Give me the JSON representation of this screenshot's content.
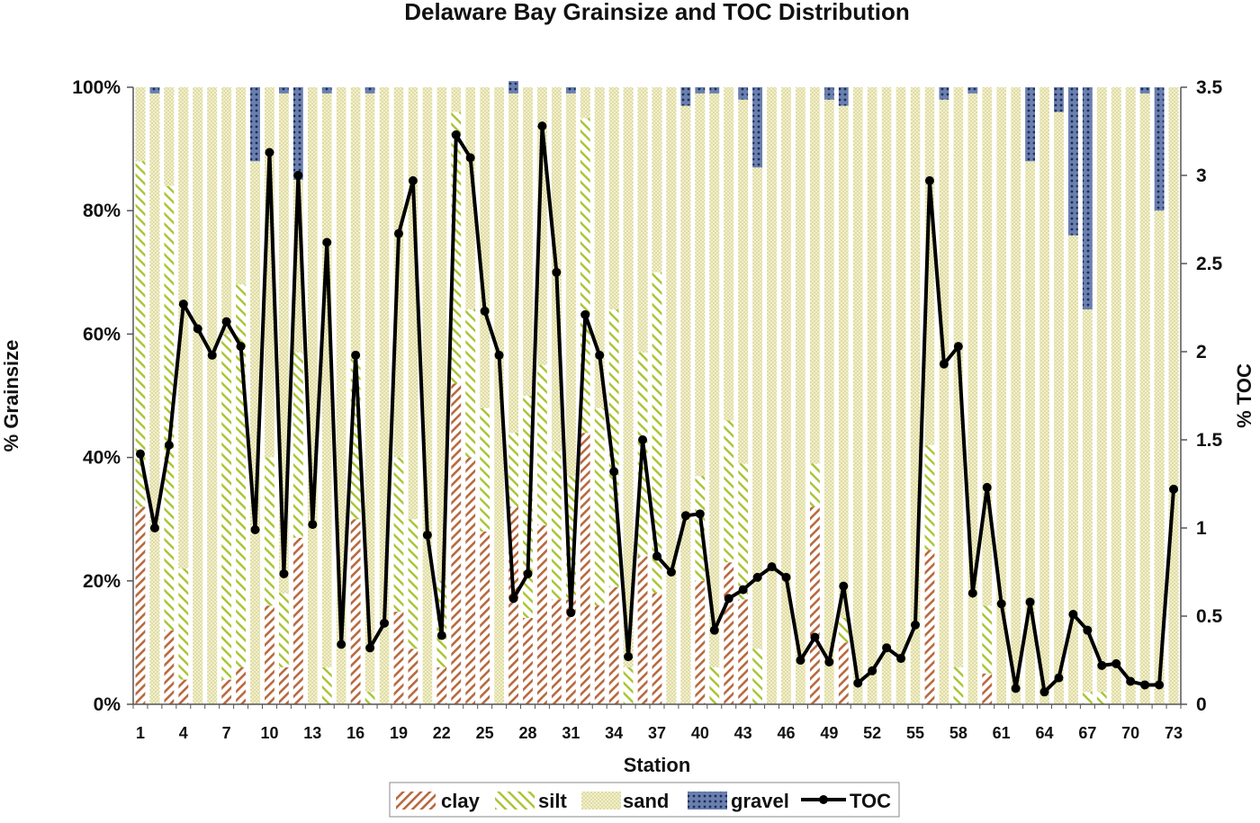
{
  "chart_data": {
    "type": "bar",
    "stacked": true,
    "title": "Delaware Bay Grainsize and TOC Distribution",
    "xlabel": "Station",
    "ylabel": "% Grainsize",
    "y2label": "% TOC",
    "ylim": [
      0,
      100
    ],
    "y2lim": [
      0,
      3.5
    ],
    "yticks": [
      "0%",
      "20%",
      "40%",
      "60%",
      "80%",
      "100%"
    ],
    "y2ticks": [
      "0",
      "0.5",
      "1",
      "1.5",
      "2",
      "2.5",
      "3",
      "3.5"
    ],
    "xticks": [
      "1",
      "4",
      "7",
      "10",
      "13",
      "16",
      "19",
      "22",
      "25",
      "28",
      "31",
      "34",
      "37",
      "40",
      "43",
      "46",
      "49",
      "52",
      "55",
      "58",
      "61",
      "64",
      "67",
      "70",
      "73"
    ],
    "legend_position": "bottom",
    "grid": false,
    "colors": {
      "clay": "#b8693f",
      "silt": "#a8c430",
      "sand": "#e8e8a8",
      "gravel": "#5a6e9c",
      "toc": "#000000"
    },
    "stations": [
      1,
      2,
      3,
      4,
      5,
      6,
      7,
      8,
      9,
      10,
      11,
      12,
      13,
      14,
      15,
      16,
      17,
      18,
      19,
      20,
      21,
      22,
      23,
      24,
      25,
      26,
      27,
      28,
      29,
      30,
      31,
      32,
      33,
      34,
      35,
      36,
      37,
      38,
      39,
      40,
      41,
      42,
      43,
      44,
      45,
      46,
      47,
      48,
      49,
      50,
      51,
      52,
      53,
      54,
      55,
      56,
      57,
      58,
      59,
      60,
      61,
      62,
      63,
      64,
      65,
      66,
      67,
      68,
      69,
      70,
      71,
      72,
      73
    ],
    "series": [
      {
        "name": "clay",
        "values": [
          32,
          0,
          12,
          4,
          0,
          0,
          4,
          6,
          0,
          16,
          6,
          27,
          0,
          0,
          0,
          30,
          0,
          0,
          15,
          9,
          0,
          6,
          52,
          40,
          28,
          0,
          32,
          14,
          29,
          17,
          17,
          44,
          16,
          19,
          0,
          24,
          18,
          0,
          0,
          20,
          0,
          23,
          17,
          0,
          0,
          0,
          0,
          32,
          0,
          10,
          0,
          0,
          0,
          0,
          0,
          25,
          0,
          0,
          0,
          5,
          0,
          0,
          0,
          0,
          0,
          0,
          0,
          0,
          0,
          0,
          0,
          0,
          0
        ]
      },
      {
        "name": "silt",
        "values": [
          56,
          0,
          72,
          18,
          0,
          0,
          56,
          62,
          0,
          24,
          12,
          30,
          0,
          6,
          0,
          26,
          2,
          0,
          25,
          21,
          0,
          14,
          44,
          24,
          20,
          0,
          12,
          36,
          26,
          24,
          20,
          51,
          32,
          45,
          6,
          33,
          52,
          0,
          0,
          17,
          6,
          23,
          22,
          9,
          0,
          0,
          0,
          7,
          0,
          4,
          0,
          0,
          0,
          0,
          0,
          17,
          0,
          6,
          0,
          11,
          0,
          0,
          0,
          0,
          0,
          0,
          2,
          2,
          0,
          0,
          0,
          0,
          0
        ]
      },
      {
        "name": "sand",
        "values": [
          12,
          99,
          16,
          78,
          100,
          100,
          40,
          32,
          88,
          60,
          81,
          28,
          100,
          93,
          100,
          44,
          97,
          100,
          60,
          70,
          100,
          80,
          4,
          36,
          52,
          100,
          55,
          50,
          45,
          59,
          62,
          5,
          52,
          36,
          94,
          43,
          30,
          100,
          97,
          62,
          93,
          54,
          59,
          78,
          100,
          100,
          100,
          61,
          98,
          83,
          100,
          100,
          100,
          100,
          100,
          58,
          98,
          94,
          99,
          84,
          100,
          100,
          88,
          100,
          96,
          76,
          62,
          98,
          100,
          100,
          99,
          80,
          100
        ]
      },
      {
        "name": "gravel",
        "values": [
          0,
          1,
          0,
          0,
          0,
          0,
          0,
          0,
          12,
          0,
          1,
          15,
          0,
          1,
          0,
          0,
          1,
          0,
          0,
          0,
          0,
          0,
          0,
          0,
          0,
          0,
          2,
          0,
          0,
          0,
          1,
          0,
          0,
          0,
          0,
          0,
          0,
          0,
          3,
          1,
          1,
          0,
          2,
          13,
          0,
          0,
          0,
          0,
          2,
          3,
          0,
          0,
          0,
          0,
          0,
          0,
          2,
          0,
          1,
          0,
          0,
          0,
          12,
          0,
          4,
          24,
          36,
          0,
          0,
          0,
          1,
          20,
          0
        ]
      },
      {
        "name": "TOC",
        "values": [
          1.42,
          1.0,
          1.47,
          2.27,
          2.13,
          1.98,
          2.17,
          2.03,
          0.99,
          3.13,
          0.74,
          3.0,
          1.02,
          2.62,
          0.34,
          1.98,
          0.32,
          0.46,
          2.67,
          2.97,
          0.96,
          0.39,
          3.23,
          3.1,
          2.23,
          1.98,
          0.6,
          0.74,
          3.28,
          2.45,
          0.52,
          2.21,
          1.98,
          1.32,
          0.27,
          1.5,
          0.84,
          0.75,
          1.07,
          1.08,
          0.42,
          0.6,
          0.65,
          0.72,
          0.78,
          0.72,
          0.25,
          0.38,
          0.24,
          0.67,
          0.12,
          0.19,
          0.32,
          0.26,
          0.45,
          2.97,
          1.93,
          2.03,
          0.63,
          1.23,
          0.57,
          0.09,
          0.58,
          0.07,
          0.15,
          0.51,
          0.42,
          0.22,
          0.23,
          0.13,
          0.11,
          0.11,
          1.22
        ]
      }
    ]
  }
}
